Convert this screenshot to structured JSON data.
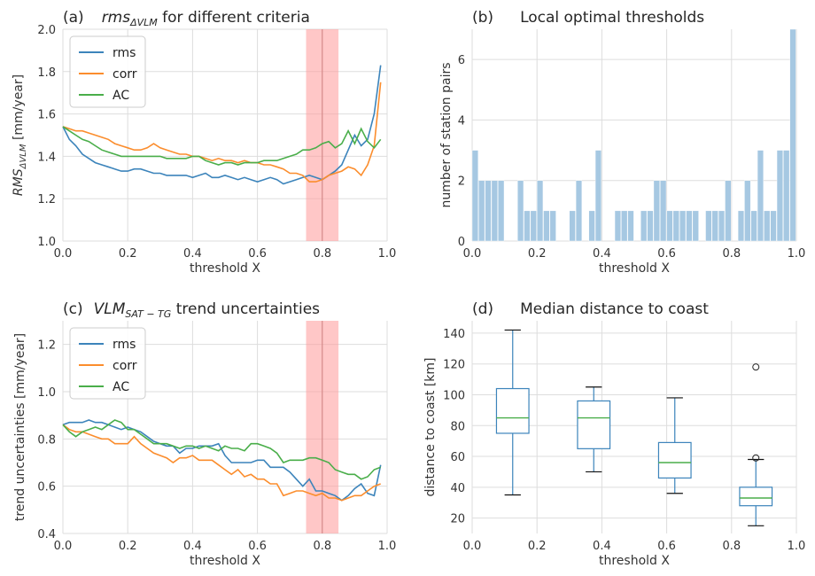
{
  "chart_data": [
    {
      "panel": "a",
      "type": "line",
      "panel_label": "(a)",
      "title": "rms",
      "title_sub": "ΔVLM",
      "title_rest": " for different criteria",
      "xlabel": "threshold X",
      "ylabel": "RMS",
      "ylabel_sub": "ΔVLM",
      "ylabel_rest": " [mm/year]",
      "xlim": [
        0.0,
        1.0
      ],
      "ylim": [
        1.0,
        2.0
      ],
      "xticks": [
        0.0,
        0.2,
        0.4,
        0.6,
        0.8,
        1.0
      ],
      "xtick_labels": [
        "0.0",
        "0.2",
        "0.4",
        "0.6",
        "0.8",
        "1.0"
      ],
      "yticks": [
        1.0,
        1.2,
        1.4,
        1.6,
        1.8,
        2.0
      ],
      "ytick_labels": [
        "1.0",
        "1.2",
        "1.4",
        "1.6",
        "1.8",
        "2.0"
      ],
      "grid": true,
      "legend": "top-left",
      "shaded_band": [
        0.75,
        0.85
      ],
      "x": [
        0.0,
        0.02,
        0.04,
        0.06,
        0.08,
        0.1,
        0.12,
        0.14,
        0.16,
        0.18,
        0.2,
        0.22,
        0.24,
        0.26,
        0.28,
        0.3,
        0.32,
        0.34,
        0.36,
        0.38,
        0.4,
        0.42,
        0.44,
        0.46,
        0.48,
        0.5,
        0.52,
        0.54,
        0.56,
        0.58,
        0.6,
        0.62,
        0.64,
        0.66,
        0.68,
        0.7,
        0.72,
        0.74,
        0.76,
        0.78,
        0.8,
        0.82,
        0.84,
        0.86,
        0.88,
        0.9,
        0.92,
        0.94,
        0.96,
        0.98
      ],
      "series": [
        {
          "name": "rms",
          "values": [
            1.54,
            1.48,
            1.45,
            1.41,
            1.39,
            1.37,
            1.36,
            1.35,
            1.34,
            1.33,
            1.33,
            1.34,
            1.34,
            1.33,
            1.32,
            1.32,
            1.31,
            1.31,
            1.31,
            1.31,
            1.3,
            1.31,
            1.32,
            1.3,
            1.3,
            1.31,
            1.3,
            1.29,
            1.3,
            1.29,
            1.28,
            1.29,
            1.3,
            1.29,
            1.27,
            1.28,
            1.29,
            1.3,
            1.31,
            1.3,
            1.29,
            1.31,
            1.33,
            1.36,
            1.43,
            1.5,
            1.45,
            1.48,
            1.6,
            1.83
          ]
        },
        {
          "name": "corr",
          "values": [
            1.54,
            1.53,
            1.52,
            1.52,
            1.51,
            1.5,
            1.49,
            1.48,
            1.46,
            1.45,
            1.44,
            1.43,
            1.43,
            1.44,
            1.46,
            1.44,
            1.43,
            1.42,
            1.41,
            1.41,
            1.4,
            1.4,
            1.39,
            1.38,
            1.39,
            1.38,
            1.38,
            1.37,
            1.38,
            1.37,
            1.37,
            1.36,
            1.36,
            1.35,
            1.34,
            1.32,
            1.32,
            1.31,
            1.28,
            1.28,
            1.29,
            1.31,
            1.32,
            1.33,
            1.35,
            1.34,
            1.31,
            1.36,
            1.45,
            1.75
          ]
        },
        {
          "name": "AC",
          "values": [
            1.54,
            1.52,
            1.5,
            1.48,
            1.47,
            1.45,
            1.43,
            1.42,
            1.41,
            1.4,
            1.4,
            1.4,
            1.4,
            1.4,
            1.4,
            1.4,
            1.39,
            1.39,
            1.39,
            1.39,
            1.4,
            1.4,
            1.38,
            1.37,
            1.36,
            1.37,
            1.37,
            1.36,
            1.37,
            1.37,
            1.37,
            1.38,
            1.38,
            1.38,
            1.39,
            1.4,
            1.41,
            1.43,
            1.43,
            1.44,
            1.46,
            1.47,
            1.44,
            1.46,
            1.52,
            1.46,
            1.53,
            1.47,
            1.44,
            1.48
          ]
        }
      ]
    },
    {
      "panel": "b",
      "type": "bar",
      "panel_label": "(b)",
      "title": "Local optimal thresholds",
      "xlabel": "threshold X",
      "ylabel": "number of station pairs",
      "xlim": [
        0.0,
        1.0
      ],
      "ylim": [
        0,
        7
      ],
      "xticks": [
        0.0,
        0.2,
        0.4,
        0.6,
        0.8,
        1.0
      ],
      "xtick_labels": [
        "0.0",
        "0.2",
        "0.4",
        "0.6",
        "0.8",
        "1.0"
      ],
      "yticks": [
        0,
        2,
        4,
        6
      ],
      "ytick_labels": [
        "0",
        "2",
        "4",
        "6"
      ],
      "grid": true,
      "bin_edges_start": 0.0,
      "bin_width": 0.02,
      "values": [
        3,
        2,
        2,
        2,
        2,
        0,
        0,
        2,
        1,
        1,
        2,
        1,
        1,
        0,
        0,
        1,
        2,
        0,
        1,
        3,
        0,
        0,
        1,
        1,
        1,
        0,
        1,
        1,
        2,
        2,
        1,
        1,
        1,
        1,
        1,
        0,
        1,
        1,
        1,
        2,
        0,
        1,
        2,
        1,
        3,
        1,
        1,
        3,
        3,
        7
      ]
    },
    {
      "panel": "c",
      "type": "line",
      "panel_label": "(c)",
      "title": "VLM",
      "title_sub": "SAT − TG",
      "title_rest": " trend uncertainties",
      "xlabel": "threshold X",
      "ylabel": "trend uncertainties [mm/year]",
      "xlim": [
        0.0,
        1.0
      ],
      "ylim": [
        0.4,
        1.3
      ],
      "xticks": [
        0.0,
        0.2,
        0.4,
        0.6,
        0.8,
        1.0
      ],
      "xtick_labels": [
        "0.0",
        "0.2",
        "0.4",
        "0.6",
        "0.8",
        "1.0"
      ],
      "yticks": [
        0.4,
        0.6,
        0.8,
        1.0,
        1.2
      ],
      "ytick_labels": [
        "0.4",
        "0.6",
        "0.8",
        "1.0",
        "1.2"
      ],
      "grid": true,
      "legend": "top-left",
      "shaded_band": [
        0.75,
        0.85
      ],
      "x": [
        0.0,
        0.02,
        0.04,
        0.06,
        0.08,
        0.1,
        0.12,
        0.14,
        0.16,
        0.18,
        0.2,
        0.22,
        0.24,
        0.26,
        0.28,
        0.3,
        0.32,
        0.34,
        0.36,
        0.38,
        0.4,
        0.42,
        0.44,
        0.46,
        0.48,
        0.5,
        0.52,
        0.54,
        0.56,
        0.58,
        0.6,
        0.62,
        0.64,
        0.66,
        0.68,
        0.7,
        0.72,
        0.74,
        0.76,
        0.78,
        0.8,
        0.82,
        0.84,
        0.86,
        0.88,
        0.9,
        0.92,
        0.94,
        0.96,
        0.98
      ],
      "series": [
        {
          "name": "rms",
          "values": [
            0.86,
            0.87,
            0.87,
            0.87,
            0.88,
            0.87,
            0.87,
            0.86,
            0.85,
            0.84,
            0.85,
            0.84,
            0.83,
            0.81,
            0.79,
            0.78,
            0.77,
            0.77,
            0.74,
            0.76,
            0.76,
            0.77,
            0.77,
            0.77,
            0.78,
            0.73,
            0.7,
            0.7,
            0.7,
            0.7,
            0.71,
            0.71,
            0.68,
            0.68,
            0.68,
            0.66,
            0.63,
            0.6,
            0.63,
            0.58,
            0.58,
            0.57,
            0.56,
            0.54,
            0.56,
            0.59,
            0.61,
            0.57,
            0.56,
            0.69
          ]
        },
        {
          "name": "corr",
          "values": [
            0.86,
            0.84,
            0.83,
            0.83,
            0.82,
            0.81,
            0.8,
            0.8,
            0.78,
            0.78,
            0.78,
            0.81,
            0.78,
            0.76,
            0.74,
            0.73,
            0.72,
            0.7,
            0.72,
            0.72,
            0.73,
            0.71,
            0.71,
            0.71,
            0.69,
            0.67,
            0.65,
            0.67,
            0.64,
            0.65,
            0.63,
            0.63,
            0.61,
            0.61,
            0.56,
            0.57,
            0.58,
            0.58,
            0.57,
            0.56,
            0.57,
            0.55,
            0.55,
            0.54,
            0.55,
            0.56,
            0.56,
            0.58,
            0.6,
            0.61
          ]
        },
        {
          "name": "AC",
          "values": [
            0.86,
            0.83,
            0.81,
            0.83,
            0.84,
            0.85,
            0.84,
            0.86,
            0.88,
            0.87,
            0.84,
            0.84,
            0.82,
            0.8,
            0.78,
            0.78,
            0.78,
            0.77,
            0.76,
            0.77,
            0.77,
            0.76,
            0.77,
            0.76,
            0.75,
            0.77,
            0.76,
            0.76,
            0.75,
            0.78,
            0.78,
            0.77,
            0.76,
            0.74,
            0.7,
            0.71,
            0.71,
            0.71,
            0.72,
            0.72,
            0.71,
            0.7,
            0.67,
            0.66,
            0.65,
            0.65,
            0.63,
            0.64,
            0.67,
            0.68
          ]
        }
      ]
    },
    {
      "panel": "d",
      "type": "boxplot",
      "panel_label": "(d)",
      "title": "Median distance to coast",
      "xlabel": "threshold X",
      "ylabel": "distance to coast [km]",
      "xlim": [
        0.0,
        1.0
      ],
      "ylim": [
        10,
        148
      ],
      "xticks": [
        0.0,
        0.2,
        0.4,
        0.6,
        0.8,
        1.0
      ],
      "xtick_labels": [
        "0.0",
        "0.2",
        "0.4",
        "0.6",
        "0.8",
        "1.0"
      ],
      "yticks": [
        20,
        40,
        60,
        80,
        100,
        120,
        140
      ],
      "ytick_labels": [
        "20",
        "40",
        "60",
        "80",
        "100",
        "120",
        "140"
      ],
      "grid": true,
      "boxes": [
        {
          "x": 0.125,
          "whisker_low": 35,
          "q1": 75,
          "median": 85,
          "q3": 104,
          "whisker_high": 142,
          "outliers": []
        },
        {
          "x": 0.375,
          "whisker_low": 50,
          "q1": 65,
          "median": 85,
          "q3": 96,
          "whisker_high": 105,
          "outliers": []
        },
        {
          "x": 0.625,
          "whisker_low": 36,
          "q1": 46,
          "median": 56,
          "q3": 69,
          "whisker_high": 98,
          "outliers": []
        },
        {
          "x": 0.875,
          "whisker_low": 15,
          "q1": 28,
          "median": 33,
          "q3": 40,
          "whisker_high": 58,
          "outliers": [
            59,
            118
          ]
        }
      ]
    }
  ],
  "colors": {
    "rms": "#3c84bb",
    "corr": "#fb8d2d",
    "AC": "#4aae4a",
    "hist": "#a6c8e2",
    "box": "#3c84bb",
    "median": "#4aae4a",
    "band": "#ff9999",
    "grid": "#dddddd",
    "text": "#333333"
  }
}
